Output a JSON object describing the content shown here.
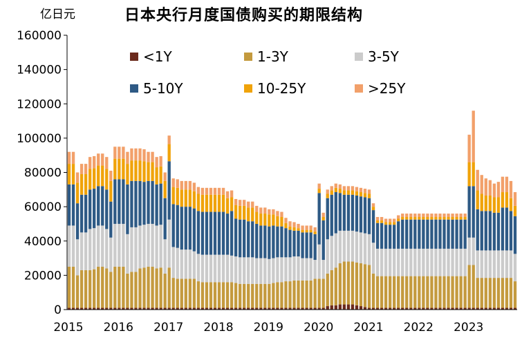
{
  "unit_label": "亿日元",
  "title": "日本央行月度国债购买的期限结构",
  "colors": {
    "lt1": "#6b2a1c",
    "y1_3": "#c49a3e",
    "y3_5": "#cbcbcb",
    "y5_10": "#2e5a85",
    "y10_25": "#f0a30a",
    "gt25": "#f2a06a"
  },
  "chart_data": {
    "type": "bar",
    "stacked": true,
    "ylim": [
      0,
      160000
    ],
    "yticks": [
      "0",
      "20000",
      "40000",
      "60000",
      "80000",
      "100000",
      "120000",
      "140000",
      "160000"
    ],
    "x_tick_labels": [
      "2015",
      "2016",
      "2017",
      "2018",
      "2019",
      "2020",
      "2021",
      "2022",
      "2023"
    ],
    "legend_placement": "top-center",
    "series": [
      {
        "key": "lt1",
        "name": "<1Y",
        "values": [
          1000,
          1000,
          1000,
          1000,
          1000,
          1000,
          1000,
          1000,
          1000,
          1000,
          1000,
          1000,
          1000,
          1000,
          1000,
          1000,
          1000,
          1000,
          1000,
          1000,
          1000,
          1000,
          1000,
          1000,
          1000,
          1000,
          1000,
          1000,
          1000,
          1000,
          1000,
          1000,
          1000,
          1000,
          1000,
          1000,
          1000,
          1000,
          1000,
          1000,
          1000,
          1000,
          1000,
          1000,
          1000,
          1000,
          1000,
          1000,
          1000,
          1000,
          1000,
          1000,
          1000,
          1000,
          1000,
          1000,
          1000,
          1000,
          1000,
          1000,
          1000,
          1000,
          2000,
          2500,
          2500,
          3000,
          3000,
          3000,
          3000,
          2500,
          2000,
          1500,
          1000,
          1000,
          1000,
          1000,
          1000,
          1000,
          1000,
          1000,
          1000,
          1000,
          1000,
          1000,
          1000,
          1000,
          1000,
          1000,
          1000,
          1000,
          1000,
          1000,
          1000,
          1000,
          1000,
          1000,
          1000,
          1000,
          1000,
          1000,
          1000,
          1000,
          1000,
          1000,
          1000,
          1000,
          1000,
          1000
        ]
      },
      {
        "key": "y1_3",
        "name": "1-3Y",
        "values": [
          24000,
          24000,
          19000,
          22000,
          22000,
          22000,
          22500,
          24000,
          24000,
          23000,
          21000,
          24000,
          24000,
          24000,
          20000,
          21000,
          21000,
          23000,
          23500,
          24000,
          24000,
          23000,
          23500,
          20000,
          23500,
          17500,
          17000,
          17000,
          17000,
          17000,
          17000,
          15500,
          15000,
          15000,
          15000,
          15000,
          15000,
          15000,
          15000,
          15000,
          14500,
          14000,
          14000,
          14000,
          14000,
          14000,
          14000,
          14000,
          14000,
          14500,
          15000,
          15000,
          15500,
          15500,
          16000,
          16000,
          16000,
          16000,
          16000,
          17000,
          17000,
          17000,
          19000,
          20500,
          22000,
          24000,
          25000,
          25000,
          25000,
          25000,
          25000,
          25000,
          25000,
          20000,
          18500,
          18500,
          18500,
          18500,
          18500,
          18500,
          18500,
          18500,
          18500,
          18500,
          18500,
          18500,
          18500,
          18500,
          18500,
          18500,
          18500,
          18500,
          18500,
          18500,
          18500,
          18500,
          25000,
          25000,
          17500,
          17500,
          17500,
          17500,
          17500,
          17500,
          17500,
          17500,
          17500,
          15500
        ]
      },
      {
        "key": "y3_5",
        "name": "3-5Y",
        "values": [
          24000,
          24000,
          21000,
          22000,
          22000,
          24000,
          24000,
          24000,
          24000,
          23000,
          20000,
          25000,
          25000,
          25000,
          23000,
          26000,
          26000,
          25000,
          25000,
          25000,
          25000,
          25000,
          25000,
          20000,
          28000,
          18000,
          18000,
          17000,
          17000,
          17000,
          16000,
          16000,
          16000,
          16000,
          16000,
          16000,
          16000,
          16000,
          16000,
          15500,
          15500,
          15500,
          15500,
          15500,
          15500,
          15000,
          15000,
          15000,
          14500,
          14500,
          14500,
          14500,
          14000,
          14000,
          14000,
          14000,
          13000,
          13000,
          13000,
          11000,
          20000,
          11000,
          20000,
          20000,
          20000,
          19000,
          18000,
          18000,
          18000,
          18000,
          18000,
          18000,
          18000,
          18000,
          16000,
          16000,
          16000,
          16000,
          16000,
          16000,
          16000,
          16000,
          16000,
          16000,
          16000,
          16000,
          16000,
          16000,
          16000,
          16000,
          16000,
          16000,
          16000,
          16000,
          16000,
          16000,
          16000,
          16000,
          16000,
          16000,
          16000,
          16000,
          16000,
          16000,
          16000,
          16000,
          16000,
          16000
        ]
      },
      {
        "key": "y5_10",
        "name": "5-10Y",
        "values": [
          24000,
          24000,
          21000,
          22000,
          22000,
          23000,
          23000,
          23000,
          23000,
          23000,
          21000,
          26000,
          26000,
          26000,
          29000,
          27000,
          27000,
          26000,
          25000,
          25000,
          25000,
          24000,
          24000,
          24000,
          34000,
          25000,
          25000,
          25000,
          25000,
          25000,
          25000,
          25000,
          25000,
          25000,
          25000,
          25000,
          25000,
          25000,
          24000,
          26000,
          22000,
          22000,
          22000,
          21000,
          21000,
          20000,
          19000,
          19000,
          19000,
          19000,
          18000,
          18000,
          17000,
          16000,
          15000,
          15000,
          15000,
          15000,
          15000,
          15000,
          30000,
          23000,
          24000,
          24000,
          24000,
          22000,
          21000,
          21000,
          21000,
          21000,
          21000,
          21000,
          21000,
          19000,
          15000,
          15000,
          14000,
          14000,
          14000,
          16000,
          17000,
          17000,
          17000,
          17000,
          17000,
          17000,
          17000,
          17000,
          17000,
          17000,
          17000,
          17000,
          17000,
          17000,
          17000,
          17000,
          30000,
          30000,
          24000,
          23000,
          23000,
          23000,
          22000,
          22000,
          25000,
          25000,
          23000,
          22000
        ]
      },
      {
        "key": "y10_25",
        "name": "10-25Y",
        "values": [
          12000,
          12000,
          12000,
          12000,
          12000,
          12000,
          12000,
          12000,
          12000,
          12000,
          12000,
          12000,
          12000,
          12000,
          12000,
          12000,
          12000,
          12000,
          12000,
          11000,
          11000,
          10000,
          10000,
          10000,
          10000,
          10000,
          10000,
          10000,
          10000,
          10000,
          10000,
          10000,
          10000,
          10000,
          10000,
          10000,
          10000,
          10000,
          9000,
          8000,
          8000,
          8000,
          8000,
          8000,
          8000,
          7000,
          7000,
          7000,
          7000,
          6500,
          6000,
          5500,
          3000,
          2000,
          2000,
          1500,
          1500,
          1500,
          1500,
          1500,
          2500,
          2000,
          2500,
          2500,
          2500,
          2500,
          2500,
          2500,
          2500,
          2500,
          2500,
          2500,
          2500,
          2000,
          1500,
          1500,
          1500,
          1500,
          1500,
          1500,
          1500,
          1500,
          1500,
          1500,
          1500,
          1500,
          1500,
          1500,
          1500,
          1500,
          1500,
          1500,
          1500,
          1500,
          1500,
          1500,
          14000,
          14000,
          11000,
          10000,
          9000,
          9000,
          9000,
          9000,
          9000,
          9000,
          7500,
          6000
        ]
      },
      {
        "key": "gt25",
        "name": ">25Y",
        "values": [
          7000,
          7000,
          6000,
          6000,
          6000,
          7000,
          7000,
          7000,
          7000,
          7000,
          6000,
          7000,
          7000,
          7000,
          7000,
          7000,
          7000,
          7000,
          7000,
          6000,
          6000,
          6000,
          6000,
          5000,
          5000,
          5000,
          5000,
          5000,
          5000,
          5000,
          5000,
          4000,
          4000,
          4000,
          4000,
          4000,
          4000,
          4000,
          4000,
          4000,
          3500,
          3500,
          3500,
          3500,
          3500,
          3500,
          3500,
          3500,
          3000,
          3000,
          3000,
          3000,
          3000,
          3000,
          3000,
          2500,
          2500,
          2500,
          2500,
          2500,
          3000,
          2500,
          2500,
          2500,
          2500,
          2500,
          2500,
          2500,
          2500,
          2500,
          2500,
          2500,
          2500,
          2000,
          2000,
          2000,
          2000,
          2000,
          2000,
          2000,
          2000,
          2000,
          2000,
          2000,
          2000,
          2000,
          2000,
          2000,
          2000,
          2000,
          2000,
          2000,
          2000,
          2000,
          2000,
          2000,
          16000,
          30000,
          12000,
          11000,
          10000,
          9000,
          8000,
          9000,
          9000,
          9000,
          10000,
          8000
        ]
      }
    ]
  }
}
